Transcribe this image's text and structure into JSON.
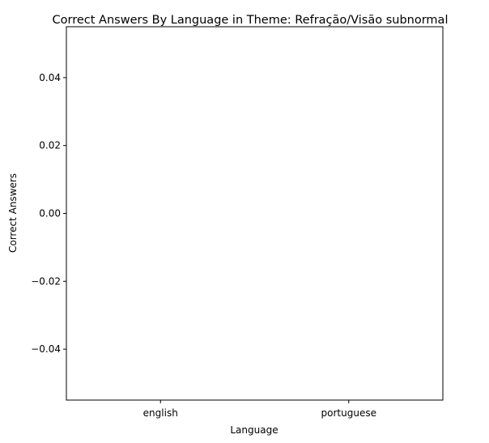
{
  "chart_data": {
    "type": "bar",
    "title": "Correct Answers By Language in Theme: Refração/Visão subnormal",
    "xlabel": "Language",
    "ylabel": "Correct Answers",
    "categories": [
      "english",
      "portuguese"
    ],
    "values": [
      0,
      0
    ],
    "ylim": [
      -0.055,
      0.055
    ],
    "yticks": [
      {
        "value": 0.04,
        "label": "0.04"
      },
      {
        "value": 0.02,
        "label": "0.02"
      },
      {
        "value": 0.0,
        "label": "0.00"
      },
      {
        "value": -0.02,
        "label": "−0.02"
      },
      {
        "value": -0.04,
        "label": "−0.04"
      }
    ],
    "grid": false,
    "legend": "none",
    "colors": {
      "bar": "#1f77b4",
      "axis": "#000000"
    }
  }
}
